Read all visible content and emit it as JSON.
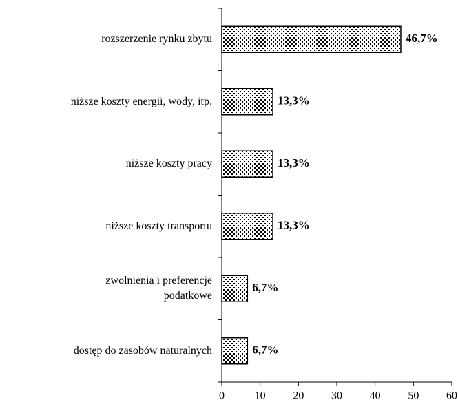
{
  "chart_data": {
    "type": "bar",
    "orientation": "horizontal",
    "categories": [
      "rozszerzenie rynku zbytu",
      "niższe koszty energii, wody, itp.",
      "niższe koszty pracy",
      "niższe koszty transportu",
      "zwolnienia i preferencje\npodatkowe",
      "dostęp do zasobów naturalnych"
    ],
    "values": [
      46.7,
      13.3,
      13.3,
      13.3,
      6.7,
      6.7
    ],
    "value_labels": [
      "46,7%",
      "13,3%",
      "13,3%",
      "13,3%",
      "6,7%",
      "6,7%"
    ],
    "color": "#000000",
    "xlim": [
      0,
      60
    ],
    "xticks": [
      0,
      10,
      20,
      30,
      40,
      50,
      60
    ],
    "grid": false
  }
}
